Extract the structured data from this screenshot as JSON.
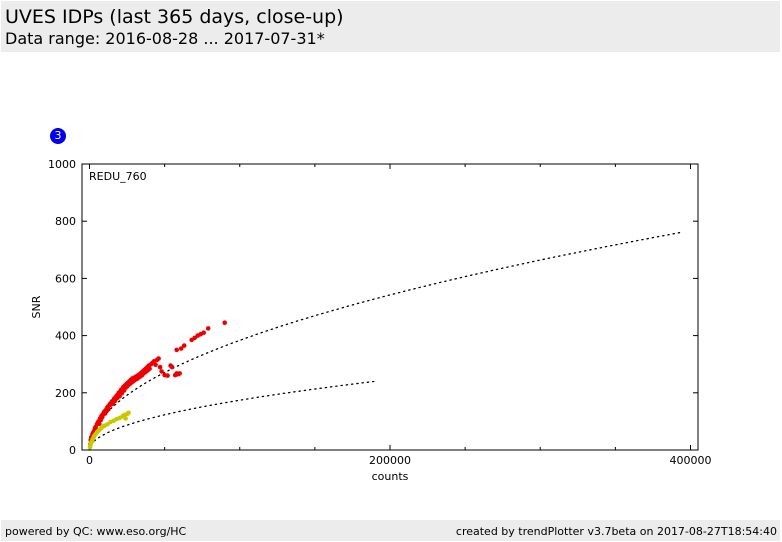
{
  "header": {
    "title": "UVES IDPs (last 365 days, close-up)",
    "subtitle": "Data range: 2016-08-28 ... 2017-07-31*"
  },
  "badge": {
    "label": "3"
  },
  "footer": {
    "left": "powered by QC: www.eso.org/HC",
    "right": "created by trendPlotter v3.7beta on 2017-08-27T18:54:40"
  },
  "colors": {
    "header_bg": "#ececec",
    "badge": "#0000ee",
    "series_red": "#ee0000",
    "series_yellow": "#c8c800",
    "reference_curve": "#000000"
  },
  "chart_data": {
    "type": "scatter",
    "label": "REDU_760",
    "xlabel": "counts",
    "ylabel": "SNR",
    "xlim": [
      -5000,
      405000
    ],
    "ylim": [
      0,
      1000
    ],
    "x_ticks": [
      0,
      200000,
      400000
    ],
    "y_ticks": [
      0,
      200,
      400,
      600,
      800,
      1000
    ],
    "grid": false,
    "series": [
      {
        "color": "#ee0000",
        "points": [
          [
            500,
            20
          ],
          [
            800,
            35
          ],
          [
            1200,
            45
          ],
          [
            1500,
            40
          ],
          [
            2000,
            55
          ],
          [
            2500,
            60
          ],
          [
            3000,
            65
          ],
          [
            3500,
            75
          ],
          [
            4000,
            80
          ],
          [
            4500,
            72
          ],
          [
            5000,
            90
          ],
          [
            5500,
            95
          ],
          [
            6000,
            100
          ],
          [
            6500,
            92
          ],
          [
            7000,
            110
          ],
          [
            7500,
            105
          ],
          [
            8000,
            120
          ],
          [
            8500,
            115
          ],
          [
            9000,
            125
          ],
          [
            9500,
            130
          ],
          [
            10000,
            135
          ],
          [
            10500,
            128
          ],
          [
            11000,
            140
          ],
          [
            11500,
            145
          ],
          [
            12000,
            150
          ],
          [
            12500,
            142
          ],
          [
            13000,
            155
          ],
          [
            13500,
            160
          ],
          [
            14000,
            158
          ],
          [
            14500,
            165
          ],
          [
            15000,
            170
          ],
          [
            15500,
            162
          ],
          [
            16000,
            175
          ],
          [
            16500,
            180
          ],
          [
            17000,
            172
          ],
          [
            17500,
            185
          ],
          [
            18000,
            190
          ],
          [
            18500,
            182
          ],
          [
            19000,
            195
          ],
          [
            19500,
            200
          ],
          [
            20000,
            188
          ],
          [
            20500,
            205
          ],
          [
            21000,
            210
          ],
          [
            21500,
            198
          ],
          [
            22000,
            215
          ],
          [
            22500,
            220
          ],
          [
            23000,
            208
          ],
          [
            23500,
            225
          ],
          [
            24000,
            218
          ],
          [
            24500,
            230
          ],
          [
            25000,
            222
          ],
          [
            25500,
            235
          ],
          [
            26000,
            228
          ],
          [
            26500,
            240
          ],
          [
            27000,
            232
          ],
          [
            27500,
            245
          ],
          [
            28000,
            236
          ],
          [
            28500,
            250
          ],
          [
            29000,
            240
          ],
          [
            29500,
            252
          ],
          [
            30000,
            244
          ],
          [
            30500,
            255
          ],
          [
            31000,
            248
          ],
          [
            31500,
            258
          ],
          [
            32000,
            250
          ],
          [
            32500,
            262
          ],
          [
            33000,
            255
          ],
          [
            33500,
            265
          ],
          [
            34000,
            258
          ],
          [
            34500,
            270
          ],
          [
            35000,
            262
          ],
          [
            35500,
            275
          ],
          [
            36000,
            268
          ],
          [
            36500,
            280
          ],
          [
            37000,
            272
          ],
          [
            37500,
            285
          ],
          [
            38000,
            276
          ],
          [
            38500,
            290
          ],
          [
            39000,
            280
          ],
          [
            39500,
            295
          ],
          [
            40000,
            284
          ],
          [
            41000,
            300
          ],
          [
            42000,
            305
          ],
          [
            43000,
            310
          ],
          [
            44000,
            298
          ],
          [
            45000,
            315
          ],
          [
            46000,
            320
          ],
          [
            47000,
            290
          ],
          [
            48000,
            275
          ],
          [
            50000,
            262
          ],
          [
            52000,
            260
          ],
          [
            54000,
            295
          ],
          [
            55000,
            290
          ],
          [
            57000,
            262
          ],
          [
            58000,
            268
          ],
          [
            59000,
            265
          ],
          [
            60000,
            268
          ],
          [
            58000,
            350
          ],
          [
            61000,
            355
          ],
          [
            63000,
            365
          ],
          [
            68000,
            385
          ],
          [
            70000,
            392
          ],
          [
            72000,
            400
          ],
          [
            74000,
            405
          ],
          [
            76000,
            410
          ],
          [
            79000,
            425
          ],
          [
            90000,
            445
          ]
        ]
      },
      {
        "color": "#c8c800",
        "points": [
          [
            300,
            10
          ],
          [
            600,
            18
          ],
          [
            1000,
            25
          ],
          [
            1500,
            30
          ],
          [
            2000,
            36
          ],
          [
            2500,
            42
          ],
          [
            3000,
            48
          ],
          [
            4000,
            55
          ],
          [
            5000,
            62
          ],
          [
            6000,
            68
          ],
          [
            7000,
            72
          ],
          [
            8000,
            78
          ],
          [
            9000,
            82
          ],
          [
            10000,
            85
          ],
          [
            12000,
            90
          ],
          [
            14000,
            98
          ],
          [
            16000,
            102
          ],
          [
            18000,
            108
          ],
          [
            20000,
            112
          ],
          [
            22000,
            118
          ],
          [
            23000,
            122
          ],
          [
            24000,
            110
          ],
          [
            25000,
            126
          ],
          [
            26000,
            130
          ]
        ]
      }
    ],
    "reference_curves": [
      {
        "style": "dotted",
        "x_max": 395000,
        "y_at_x_max": 762
      },
      {
        "style": "dotted",
        "x_max": 190000,
        "y_at_x_max": 240
      }
    ]
  }
}
